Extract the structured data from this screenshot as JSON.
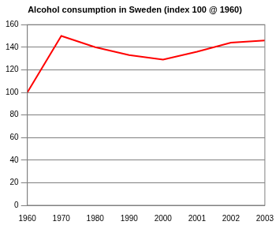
{
  "chart_data": {
    "type": "line",
    "title": "Alcohol consumption in Sweden (index 100 @ 1960)",
    "categories": [
      "1960",
      "1970",
      "1980",
      "1990",
      "2000",
      "2001",
      "2002",
      "2003"
    ],
    "values": [
      100,
      150,
      140,
      133,
      129,
      136,
      144,
      146
    ],
    "color": "#ff0000",
    "ylim": [
      0,
      160
    ],
    "yticks": [
      0,
      20,
      40,
      60,
      80,
      100,
      120,
      140,
      160
    ],
    "grid": true
  }
}
